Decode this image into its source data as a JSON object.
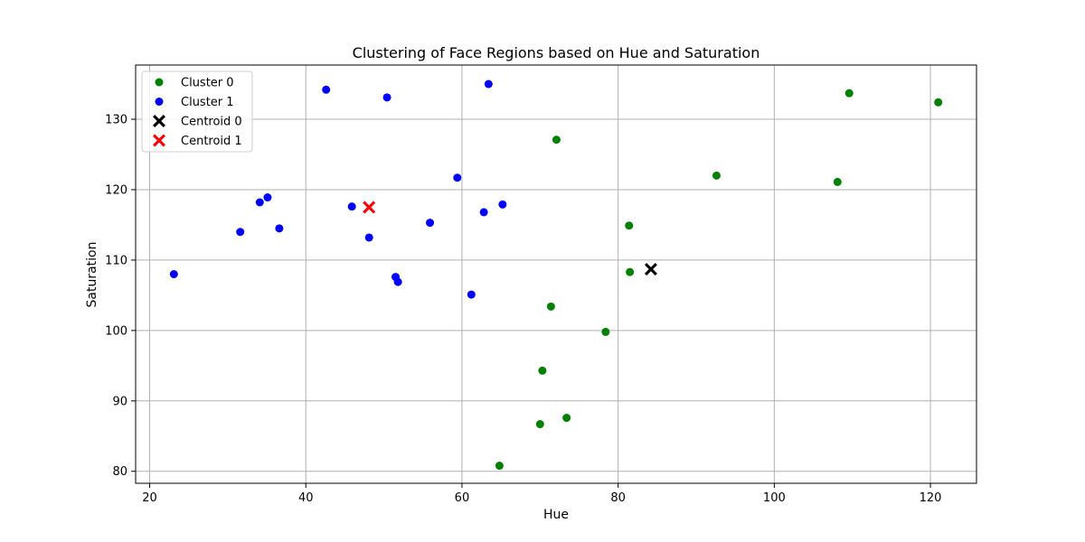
{
  "chart_data": {
    "type": "scatter",
    "title": "Clustering of Face Regions based on Hue and Saturation",
    "xlabel": "Hue",
    "ylabel": "Saturation",
    "xlim": [
      18.2,
      125.9
    ],
    "ylim": [
      78.3,
      137.7
    ],
    "xticks": [
      20,
      40,
      60,
      80,
      100,
      120
    ],
    "yticks": [
      80,
      90,
      100,
      110,
      120,
      130
    ],
    "grid": true,
    "legend_position": "top-left",
    "series": [
      {
        "name": "Cluster 0",
        "marker": "circle",
        "color": "#008000",
        "points": [
          [
            72.1,
            127.1
          ],
          [
            109.6,
            133.7
          ],
          [
            121.0,
            132.4
          ],
          [
            92.6,
            122.0
          ],
          [
            108.1,
            121.1
          ],
          [
            81.4,
            114.9
          ],
          [
            81.5,
            108.3
          ],
          [
            71.4,
            103.4
          ],
          [
            78.4,
            99.8
          ],
          [
            70.3,
            94.3
          ],
          [
            70.0,
            86.7
          ],
          [
            73.4,
            87.6
          ],
          [
            64.8,
            80.8
          ]
        ]
      },
      {
        "name": "Cluster 1",
        "marker": "circle",
        "color": "#0000ff",
        "points": [
          [
            42.6,
            134.2
          ],
          [
            50.4,
            133.1
          ],
          [
            63.4,
            135.0
          ],
          [
            59.4,
            121.7
          ],
          [
            35.1,
            118.9
          ],
          [
            34.1,
            118.2
          ],
          [
            45.9,
            117.6
          ],
          [
            65.2,
            117.9
          ],
          [
            62.8,
            116.8
          ],
          [
            55.9,
            115.3
          ],
          [
            36.6,
            114.5
          ],
          [
            31.6,
            114.0
          ],
          [
            48.1,
            113.2
          ],
          [
            23.1,
            108.0
          ],
          [
            51.5,
            107.6
          ],
          [
            51.8,
            106.9
          ],
          [
            61.2,
            105.1
          ]
        ]
      },
      {
        "name": "Centroid 0",
        "marker": "x",
        "color": "#000000",
        "points": [
          [
            84.2,
            108.7
          ]
        ]
      },
      {
        "name": "Centroid 1",
        "marker": "x",
        "color": "#ff0000",
        "points": [
          [
            48.1,
            117.5
          ]
        ]
      }
    ]
  }
}
